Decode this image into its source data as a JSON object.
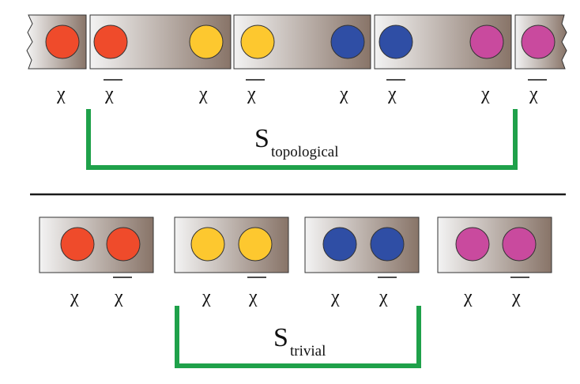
{
  "colors": {
    "red": "#ef4b2b",
    "yellow": "#fdc82f",
    "blue": "#2f4ea5",
    "magenta": "#c94a9e",
    "bracket": "#1fa14a",
    "box_light": "#f3f3f3",
    "box_dark": "#887468",
    "divider": "#1a1a1a"
  },
  "labels": {
    "chi": "χ",
    "chi_bar": "χ",
    "s_letter": "S",
    "s_topological_subscript": "topological",
    "s_trivial_subscript": "trivial"
  },
  "topological_row": {
    "segments": [
      {
        "name": "segment-left-torn",
        "beads": [
          "red"
        ],
        "torn_left": true,
        "torn_right": false
      },
      {
        "name": "segment-red-yellow",
        "beads": [
          "red",
          "yellow"
        ]
      },
      {
        "name": "segment-yellow-blue",
        "beads": [
          "yellow",
          "blue"
        ]
      },
      {
        "name": "segment-blue-magenta",
        "beads": [
          "blue",
          "magenta"
        ]
      },
      {
        "name": "segment-right-torn",
        "beads": [
          "magenta"
        ],
        "torn_left": false,
        "torn_right": true
      }
    ],
    "symbols": [
      "chi",
      "chi_bar",
      "chi",
      "chi_bar",
      "chi",
      "chi_bar",
      "chi",
      "chi_bar"
    ]
  },
  "trivial_row": {
    "segments": [
      {
        "name": "pair-red",
        "beads": [
          "red",
          "red"
        ]
      },
      {
        "name": "pair-yellow",
        "beads": [
          "yellow",
          "yellow"
        ]
      },
      {
        "name": "pair-blue",
        "beads": [
          "blue",
          "blue"
        ]
      },
      {
        "name": "pair-magenta",
        "beads": [
          "magenta",
          "magenta"
        ]
      }
    ],
    "symbols": [
      "chi",
      "chi_bar",
      "chi",
      "chi_bar",
      "chi",
      "chi_bar",
      "chi",
      "chi_bar"
    ]
  }
}
